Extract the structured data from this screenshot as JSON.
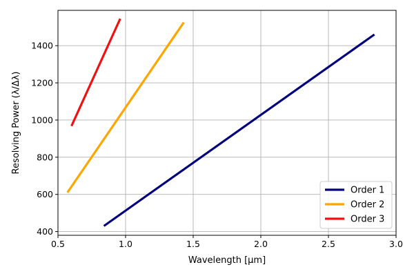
{
  "chart_data": {
    "type": "line",
    "title": "",
    "xlabel": "Wavelength [μm]",
    "ylabel": "Resolving Power (λ/Δλ)",
    "xlim": [
      0.5,
      3.0
    ],
    "ylim": [
      380,
      1590
    ],
    "x_ticks": [
      0.5,
      1.0,
      1.5,
      2.0,
      2.5,
      3.0
    ],
    "x_tick_labels": [
      "0.5",
      "1.0",
      "1.5",
      "2.0",
      "2.5",
      "3.0"
    ],
    "y_ticks": [
      400,
      600,
      800,
      1000,
      1200,
      1400
    ],
    "y_tick_labels": [
      "400",
      "600",
      "800",
      "1000",
      "1200",
      "1400"
    ],
    "grid": true,
    "legend_position": "lower-right",
    "series": [
      {
        "name": "Order 1",
        "color": "#00007f",
        "x": [
          0.84,
          2.84
        ],
        "y": [
          430,
          1460
        ]
      },
      {
        "name": "Order 2",
        "color": "#ffa500",
        "x": [
          0.57,
          1.43
        ],
        "y": [
          610,
          1525
        ]
      },
      {
        "name": "Order 3",
        "color": "#ef1010",
        "x": [
          0.6,
          0.96
        ],
        "y": [
          968,
          1545
        ]
      }
    ]
  }
}
